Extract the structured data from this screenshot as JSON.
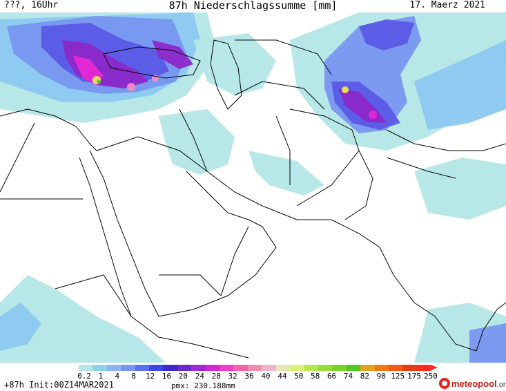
{
  "header": {
    "left": "???, 16Uhr",
    "title": "87h Niederschlagssumme [mm]",
    "right": "17. Maerz 2021"
  },
  "legend": {
    "ticks": [
      "0.2",
      "1",
      "4",
      "8",
      "12",
      "16",
      "20",
      "24",
      "28",
      "32",
      "36",
      "40",
      "44",
      "50",
      "58",
      "66",
      "74",
      "82",
      "90",
      "125",
      "175",
      "250"
    ],
    "colors": [
      "#b4e6e6",
      "#8cd2e6",
      "#8cb4f0",
      "#7896f0",
      "#5a6ef0",
      "#3c46e6",
      "#3c28c8",
      "#6e28c8",
      "#a028d2",
      "#d228d2",
      "#f03cc8",
      "#f064aa",
      "#f08cb4",
      "#f0b4c8",
      "#e6e6b4",
      "#dcf078",
      "#b4e650",
      "#96dc3c",
      "#78d228",
      "#50c828",
      "#e6a01e",
      "#f07814",
      "#f05a14",
      "#e63c14",
      "#ff2a1f"
    ],
    "arrow_color": "#ff2a1f"
  },
  "footer": {
    "left": "+87h Init:00Z14MAR2021",
    "pmx": "pmx: 230.188mm",
    "logo_text": "meteopool",
    "logo_tld": ".org"
  },
  "map_colors": {
    "light": "#b4e6e6",
    "mid": "#8cc8f0",
    "blue": "#7896f0",
    "indigo": "#5a5ae6",
    "purple": "#8c28c8",
    "magenta": "#e628d2",
    "pink": "#f08cc8",
    "yellow": "#f0e650",
    "green": "#50c83c",
    "border": "#000000"
  }
}
